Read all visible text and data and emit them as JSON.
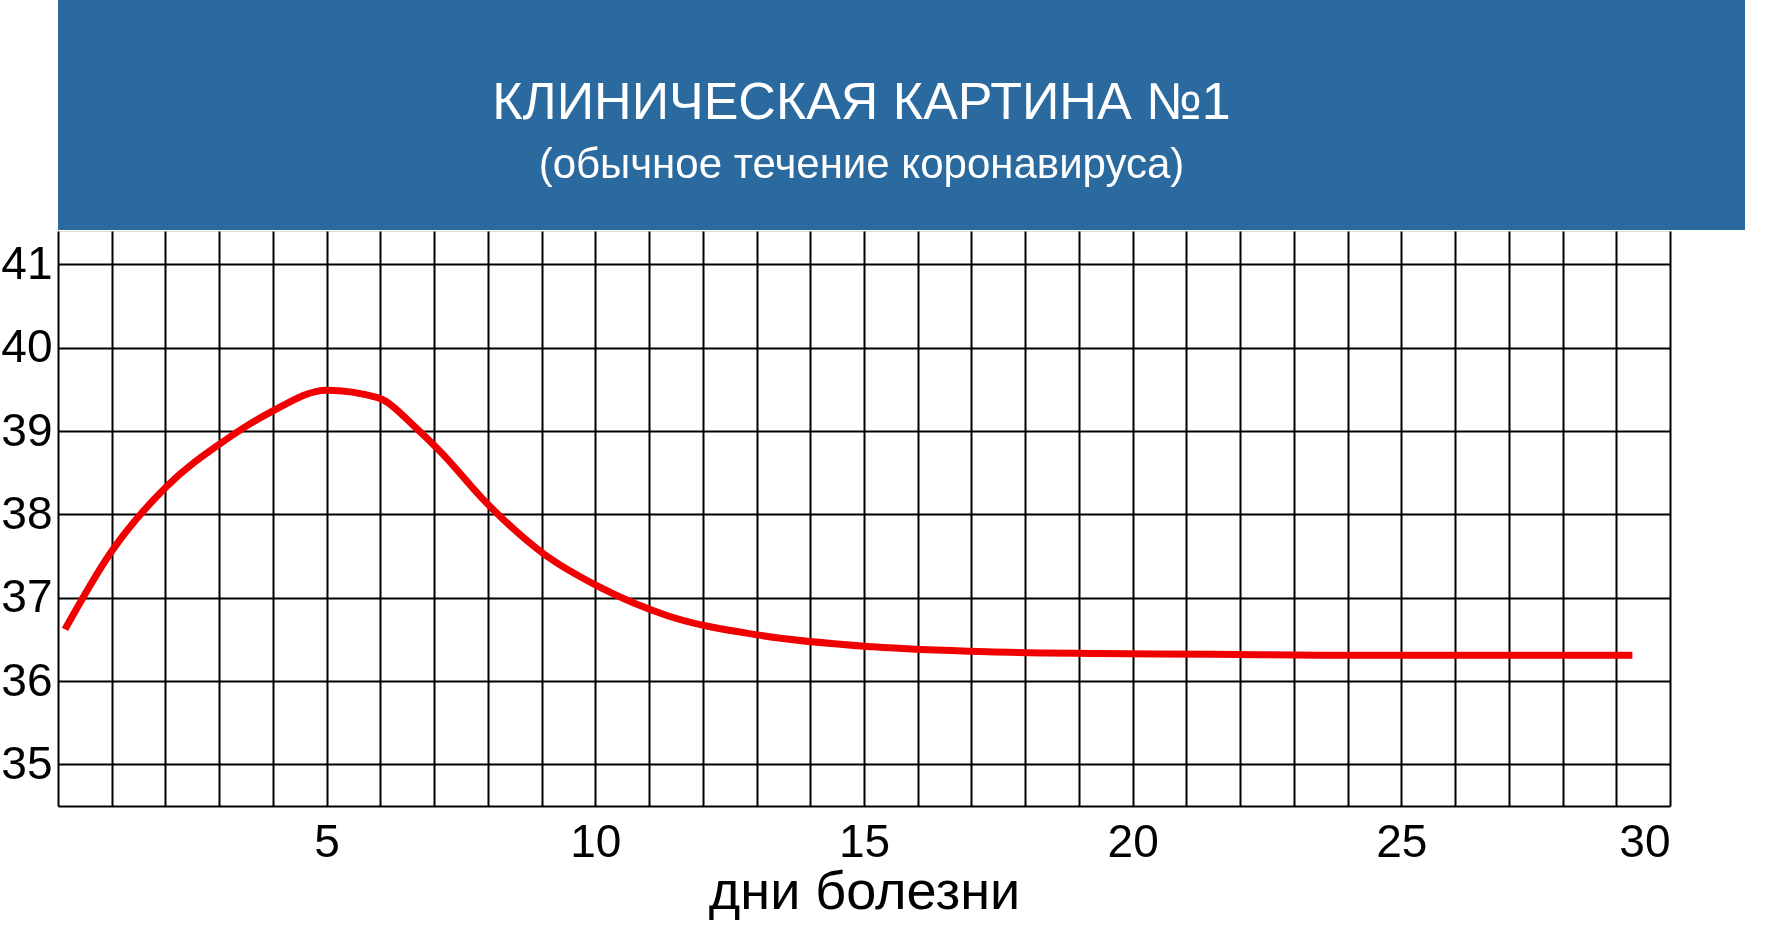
{
  "chart_data": {
    "type": "line",
    "title": "КЛИНИЧЕСКАЯ КАРТИНА №1",
    "subtitle": "(обычное течение коронавируса)",
    "xlabel": "дни болезни",
    "x": [
      0.13,
      0.97,
      2.03,
      3.09,
      3.94,
      5,
      5.95,
      6.69,
      7.12,
      7.97,
      9.03,
      10.1,
      11.36,
      13.05,
      15.17,
      17.29,
      19.4,
      21.5,
      23.6,
      25.8,
      29.3
    ],
    "series": [
      {
        "color": "#f00000",
        "values": [
          36.62,
          37.53,
          38.34,
          38.88,
          39.22,
          39.49,
          39.4,
          39.02,
          38.75,
          38.14,
          37.53,
          37.12,
          36.78,
          36.55,
          36.41,
          36.35,
          36.33,
          36.32,
          36.31,
          36.31,
          36.31
        ]
      }
    ],
    "xlim": [
      0,
      30
    ],
    "ylim": [
      34.5,
      41.4
    ],
    "xticks": [
      {
        "value": 1,
        "label": null
      },
      {
        "value": 2,
        "label": null
      },
      {
        "value": 3,
        "label": null
      },
      {
        "value": 4,
        "label": null
      },
      5,
      {
        "value": 6,
        "label": null
      },
      {
        "value": 7,
        "label": null
      },
      {
        "value": 8,
        "label": null
      },
      {
        "value": 9,
        "label": null
      },
      10,
      {
        "value": 11,
        "label": null
      },
      {
        "value": 12,
        "label": null
      },
      {
        "value": 13,
        "label": null
      },
      {
        "value": 14,
        "label": null
      },
      15,
      {
        "value": 16,
        "label": null
      },
      {
        "value": 17,
        "label": null
      },
      {
        "value": 18,
        "label": null
      },
      {
        "value": 19,
        "label": null
      },
      20,
      {
        "value": 21,
        "label": null
      },
      {
        "value": 22,
        "label": null
      },
      {
        "value": 23,
        "label": null
      },
      {
        "value": 24,
        "label": null
      },
      25,
      {
        "value": 26,
        "label": null
      },
      {
        "value": 27,
        "label": null
      },
      {
        "value": 28,
        "label": null
      },
      {
        "value": 29,
        "label": null
      },
      30
    ],
    "yticks": [
      35,
      36,
      37,
      38,
      39,
      40,
      41
    ],
    "grid": true,
    "marker": "none",
    "line_style": "solid"
  }
}
